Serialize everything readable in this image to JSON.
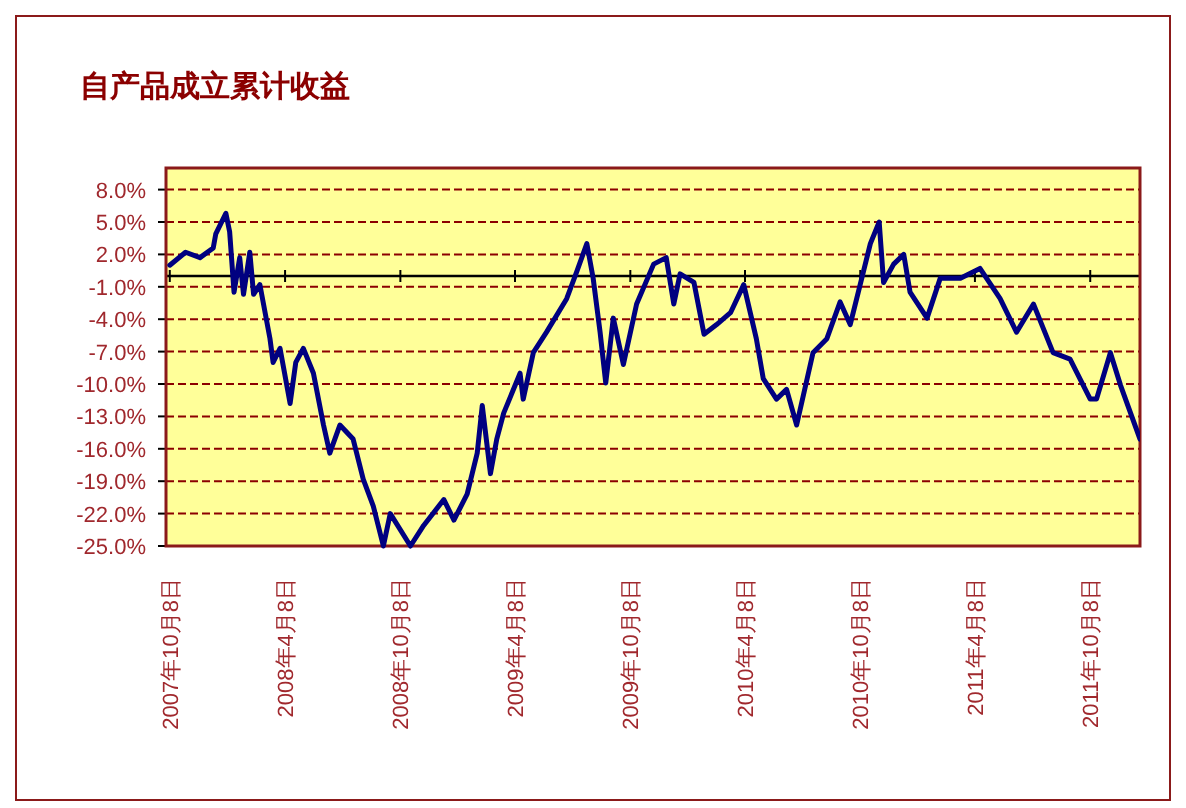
{
  "chart_data": {
    "type": "line",
    "title": "自产品成立累计收益",
    "grid": "y",
    "xlim": [
      "2007-10-02",
      "2011-12-26"
    ],
    "ylim": [
      -25,
      10
    ],
    "xticks": [
      {
        "value": "2007-10-08",
        "label": "2007年10月8日"
      },
      {
        "value": "2008-04-08",
        "label": "2008年4月8日"
      },
      {
        "value": "2008-10-08",
        "label": "2008年10月8日"
      },
      {
        "value": "2009-04-08",
        "label": "2009年4月8日"
      },
      {
        "value": "2009-10-08",
        "label": "2009年10月8日"
      },
      {
        "value": "2010-04-08",
        "label": "2010年4月8日"
      },
      {
        "value": "2010-10-08",
        "label": "2010年10月8日"
      },
      {
        "value": "2011-04-08",
        "label": "2011年4月8日"
      },
      {
        "value": "2011-10-08",
        "label": "2011年10月8日"
      }
    ],
    "yticks": [
      {
        "value": 8,
        "label": "8.0%"
      },
      {
        "value": 5,
        "label": "5.0%"
      },
      {
        "value": 2,
        "label": "2.0%"
      },
      {
        "value": -1,
        "label": "-1.0%"
      },
      {
        "value": -4,
        "label": "-4.0%"
      },
      {
        "value": -7,
        "label": "-7.0%"
      },
      {
        "value": -10,
        "label": "-10.0%"
      },
      {
        "value": -13,
        "label": "-13.0%"
      },
      {
        "value": -16,
        "label": "-16.0%"
      },
      {
        "value": -19,
        "label": "-19.0%"
      },
      {
        "value": -22,
        "label": "-22.0%"
      },
      {
        "value": -25,
        "label": "-25.0%"
      }
    ],
    "series": [
      {
        "color": "#000080",
        "x": [
          "2007-10-08",
          "2007-11-02",
          "2007-11-25",
          "2007-12-16",
          "2007-12-20",
          "2008-01-05",
          "2008-01-11",
          "2008-01-18",
          "2008-01-27",
          "2008-02-02",
          "2008-02-12",
          "2008-02-18",
          "2008-02-28",
          "2008-03-15",
          "2008-03-20",
          "2008-03-31",
          "2008-04-16",
          "2008-04-25",
          "2008-05-07",
          "2008-05-23",
          "2008-06-08",
          "2008-06-18",
          "2008-07-04",
          "2008-07-25",
          "2008-08-10",
          "2008-08-26",
          "2008-09-11",
          "2008-09-22",
          "2008-10-24",
          "2008-11-14",
          "2008-12-16",
          "2009-01-01",
          "2009-01-22",
          "2009-02-07",
          "2009-02-15",
          "2009-02-28",
          "2009-03-10",
          "2009-03-21",
          "2009-04-16",
          "2009-04-21",
          "2009-05-07",
          "2009-05-28",
          "2009-06-29",
          "2009-07-15",
          "2009-07-31",
          "2009-08-10",
          "2009-08-21",
          "2009-08-30",
          "2009-09-11",
          "2009-09-27",
          "2009-10-18",
          "2009-11-14",
          "2009-12-04",
          "2009-12-16",
          "2009-12-26",
          "2010-01-17",
          "2010-02-02",
          "2010-02-22",
          "2010-03-16",
          "2010-04-06",
          "2010-04-26",
          "2010-05-07",
          "2010-05-28",
          "2010-06-13",
          "2010-06-29",
          "2010-07-25",
          "2010-08-16",
          "2010-09-06",
          "2010-09-22",
          "2010-10-13",
          "2010-10-24",
          "2010-11-07",
          "2010-11-14",
          "2010-11-30",
          "2010-12-16",
          "2010-12-26",
          "2011-01-22",
          "2011-02-12",
          "2011-03-16",
          "2011-04-16",
          "2011-05-18",
          "2011-06-13",
          "2011-07-10",
          "2011-08-10",
          "2011-09-06",
          "2011-10-08",
          "2011-10-18",
          "2011-11-09",
          "2011-11-25",
          "2011-12-26"
        ],
        "values": [
          1.0,
          2.2,
          1.7,
          2.6,
          3.9,
          5.8,
          4.1,
          -1.5,
          1.7,
          -1.7,
          2.2,
          -1.7,
          -0.8,
          -5.8,
          -8.0,
          -6.7,
          -11.8,
          -8.0,
          -6.7,
          -9.0,
          -13.8,
          -16.4,
          -13.8,
          -15.1,
          -18.8,
          -21.3,
          -25,
          -22.0,
          -25,
          -23.1,
          -20.7,
          -22.6,
          -20.2,
          -16.4,
          -12.0,
          -18.3,
          -15.1,
          -12.7,
          -9.0,
          -11.4,
          -7.1,
          -5.2,
          -2.1,
          0.4,
          3.0,
          -0.2,
          -5.2,
          -9.9,
          -3.9,
          -8.2,
          -2.6,
          1.1,
          1.7,
          -2.6,
          0.2,
          -0.6,
          -5.4,
          -4.5,
          -3.4,
          -0.8,
          -5.8,
          -9.5,
          -11.4,
          -10.5,
          -13.8,
          -7.1,
          -5.8,
          -2.4,
          -4.5,
          0.4,
          3.0,
          5.0,
          -0.6,
          1.1,
          2.0,
          -1.5,
          -3.9,
          -0.2,
          -0.2,
          0.7,
          -2.1,
          -5.2,
          -2.6,
          -7.1,
          -7.7,
          -11.4,
          -11.4,
          -7.1,
          -10.1,
          -15.1
        ]
      }
    ]
  }
}
